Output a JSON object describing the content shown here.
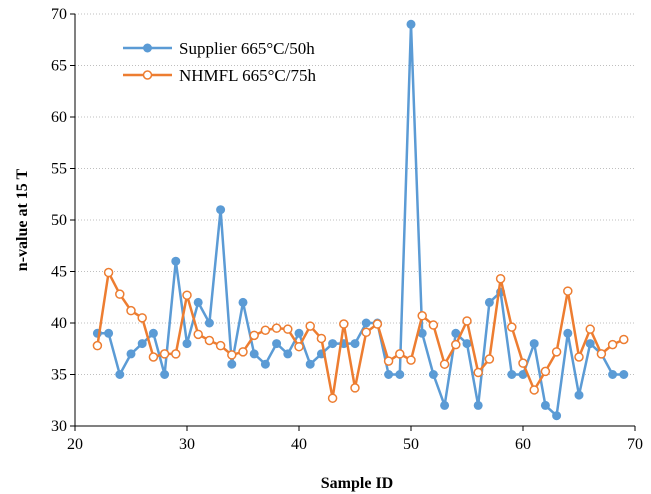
{
  "chart_data": {
    "type": "line",
    "title": "",
    "xlabel": "Sample ID",
    "ylabel": "n-value at 15 T",
    "xlim": [
      20,
      70
    ],
    "ylim": [
      30,
      70
    ],
    "xticks": [
      20,
      30,
      40,
      50,
      60,
      70
    ],
    "yticks": [
      30,
      35,
      40,
      45,
      50,
      55,
      60,
      65,
      70
    ],
    "grid": {
      "horizontal": true,
      "vertical": false,
      "style": "dotted"
    },
    "legend": {
      "position": "top-left"
    },
    "series": [
      {
        "name": "Supplier 665°C/50h",
        "color": "#5b9bd5",
        "marker": "filled-circle",
        "x": [
          22,
          23,
          24,
          25,
          26,
          27,
          28,
          29,
          30,
          31,
          32,
          33,
          34,
          35,
          36,
          37,
          38,
          39,
          40,
          41,
          42,
          43,
          44,
          45,
          46,
          47,
          48,
          49,
          50,
          51,
          52,
          53,
          54,
          55,
          56,
          57,
          58,
          59,
          60,
          61,
          62,
          63,
          64,
          65,
          66,
          67,
          68,
          69
        ],
        "y": [
          39,
          39,
          35,
          37,
          38,
          39,
          35,
          46,
          38,
          42,
          40,
          51,
          36,
          42,
          37,
          36,
          38,
          37,
          39,
          36,
          37,
          38,
          38,
          38,
          40,
          40,
          35,
          35,
          69,
          39,
          35,
          32,
          39,
          38,
          32,
          42,
          43,
          35,
          35,
          38,
          32,
          31,
          39,
          33,
          38,
          37,
          35,
          35
        ]
      },
      {
        "name": "NHMFL 665°C/75h",
        "color": "#ed7d31",
        "marker": "open-circle",
        "x": [
          22,
          23,
          24,
          25,
          26,
          27,
          28,
          29,
          30,
          31,
          32,
          33,
          34,
          35,
          36,
          37,
          38,
          39,
          40,
          41,
          42,
          43,
          44,
          45,
          46,
          47,
          48,
          49,
          50,
          51,
          52,
          53,
          54,
          55,
          56,
          57,
          58,
          59,
          60,
          61,
          62,
          63,
          64,
          65,
          66,
          67,
          68,
          69
        ],
        "y": [
          37.8,
          44.9,
          42.8,
          41.2,
          40.5,
          36.7,
          37.0,
          37.0,
          42.7,
          38.9,
          38.3,
          37.8,
          36.9,
          37.2,
          38.8,
          39.3,
          39.5,
          39.4,
          37.7,
          39.7,
          38.5,
          32.7,
          39.9,
          33.7,
          39.1,
          39.9,
          36.3,
          37.0,
          36.4,
          40.7,
          39.8,
          36.0,
          37.9,
          40.2,
          35.2,
          36.5,
          44.3,
          39.6,
          36.1,
          33.5,
          35.3,
          37.2,
          43.1,
          36.7,
          39.4,
          37.0,
          37.9,
          38.4
        ]
      }
    ]
  }
}
